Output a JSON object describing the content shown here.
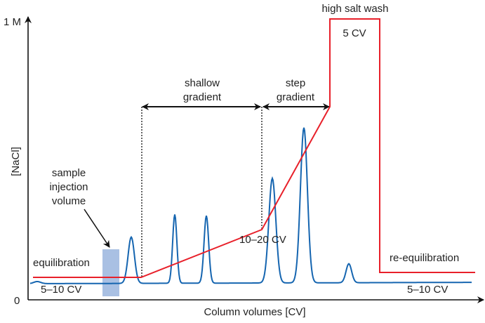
{
  "axes": {
    "y_label": "[NaCl]",
    "y_max_label": "1 M",
    "y_min_label": "0",
    "x_label": "Column volumes [CV]"
  },
  "annotations": {
    "high_salt_wash": "high salt wash",
    "high_salt_wash_volume": "5 CV",
    "shallow_gradient": "shallow gradient",
    "step_gradient": "step gradient",
    "sample_injection": "sample injection volume",
    "equilibration": "equilibration",
    "equilibration_volume": "5–10 CV",
    "gradient_volume": "10–20 CV",
    "re_equilibration": "re-equilibration",
    "re_equilibration_volume": "5–10 CV"
  },
  "colors": {
    "salt_line": "#e8202a",
    "chromatogram": "#1565b0",
    "injection_band": "#a9c0e3"
  }
}
